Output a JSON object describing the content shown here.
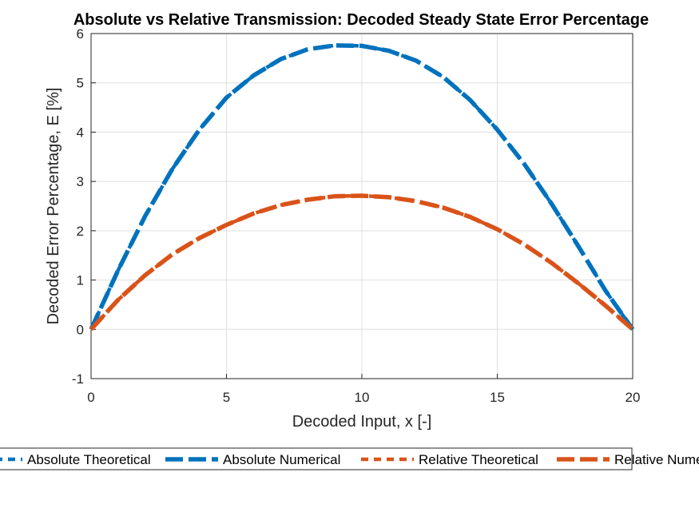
{
  "chart_data": {
    "type": "line",
    "title": "Absolute vs Relative Transmission: Decoded Steady State Error Percentage",
    "xlabel": "Decoded Input, x [-]",
    "ylabel": "Decoded Error Percentage, E [%]",
    "xlim": [
      0,
      20
    ],
    "ylim": [
      -1,
      6
    ],
    "xticks": [
      "0",
      "5",
      "10",
      "15",
      "20"
    ],
    "yticks": [
      "-1",
      "0",
      "1",
      "2",
      "3",
      "4",
      "5",
      "6"
    ],
    "grid": true,
    "legend": {
      "placement": "bottom",
      "entries": [
        "Absolute Theoretical",
        "Absolute Numerical",
        "Relative Theoretical",
        "Relative Numerical"
      ]
    },
    "x": [
      0,
      1,
      2,
      3,
      4,
      5,
      6,
      7,
      8,
      9,
      10,
      11,
      12,
      13,
      14,
      15,
      16,
      17,
      18,
      19,
      20
    ],
    "series": [
      {
        "name": "Absolute Theoretical",
        "color": "#0072BD",
        "values": [
          0,
          1.2,
          2.3,
          3.25,
          4.05,
          4.7,
          5.15,
          5.48,
          5.68,
          5.76,
          5.75,
          5.65,
          5.45,
          5.12,
          4.65,
          4.05,
          3.35,
          2.55,
          1.68,
          0.78,
          0
        ]
      },
      {
        "name": "Absolute Numerical",
        "color": "#0072BD",
        "values": [
          0,
          1.2,
          2.3,
          3.25,
          4.05,
          4.7,
          5.15,
          5.48,
          5.68,
          5.76,
          5.75,
          5.65,
          5.45,
          5.12,
          4.65,
          4.05,
          3.35,
          2.55,
          1.68,
          0.78,
          0
        ]
      },
      {
        "name": "Relative Theoretical",
        "color": "#D95319",
        "values": [
          0,
          0.6,
          1.1,
          1.52,
          1.85,
          2.12,
          2.35,
          2.52,
          2.63,
          2.7,
          2.71,
          2.68,
          2.6,
          2.47,
          2.28,
          2.03,
          1.72,
          1.35,
          0.93,
          0.48,
          0
        ]
      },
      {
        "name": "Relative Numerical",
        "color": "#D95319",
        "values": [
          0,
          0.6,
          1.1,
          1.52,
          1.85,
          2.12,
          2.35,
          2.52,
          2.63,
          2.7,
          2.71,
          2.68,
          2.6,
          2.47,
          2.28,
          2.03,
          1.72,
          1.35,
          0.93,
          0.48,
          0
        ]
      }
    ]
  }
}
